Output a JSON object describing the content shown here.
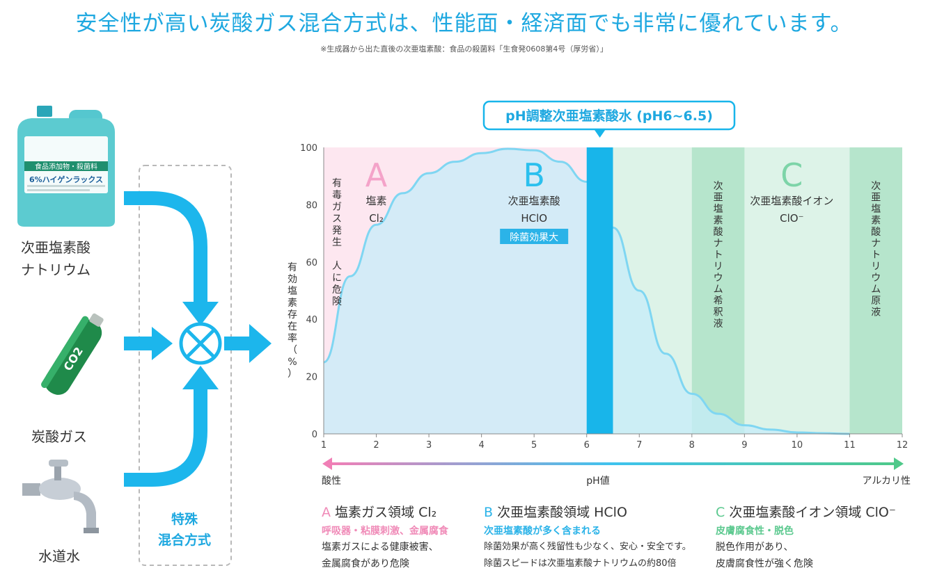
{
  "header": {
    "title": "安全性が高い炭酸ガス混合方式は、性能面・経済面でも非常に優れています。",
    "note": "※生成器から出た直後の次亜塩素酸：食品の殺菌料「生食発0608第4号（厚労省）」"
  },
  "ingredients": [
    {
      "label_line1": "次亜塩素酸",
      "label_line2": "ナトリウム",
      "image": "bleach-bottle"
    },
    {
      "label_line1": "炭酸ガス",
      "label_line2": "",
      "image": "co2-cartridge"
    },
    {
      "label_line1": "水道水",
      "label_line2": "",
      "image": "water-faucet"
    }
  ],
  "bottle_text": {
    "tag": "食品添加物・殺菌料",
    "brand": "6%ハイゲンラックス"
  },
  "cartridge_text": "CO2",
  "method": {
    "line1": "特殊",
    "line2": "混合方式"
  },
  "chart_data": {
    "type": "area",
    "callout": "pH調整次亜塩素酸水 (pH6~6.5)",
    "ylabel": "有効塩素存在率（%）",
    "xlabel": "pH値",
    "xlim": [
      1,
      12
    ],
    "ylim": [
      0,
      100
    ],
    "x_ticks": [
      1,
      2,
      3,
      4,
      5,
      6,
      7,
      8,
      9,
      10,
      11,
      12
    ],
    "y_ticks": [
      0,
      20,
      40,
      60,
      80,
      100
    ],
    "series": [
      {
        "x": [
          1,
          1.5,
          2,
          2.5,
          3,
          3.5,
          4,
          4.5,
          5,
          5.5,
          6,
          6.5,
          7,
          7.5,
          8,
          8.5,
          9,
          9.5,
          10,
          10.5,
          11
        ],
        "values": [
          25,
          55,
          73,
          84,
          91,
          95,
          98,
          99.5,
          99,
          95,
          88,
          72,
          50,
          28,
          14,
          7,
          3,
          1.5,
          0.5,
          0.2,
          0
        ]
      }
    ],
    "highlight_band": {
      "from": 6,
      "to": 6.5
    },
    "regions": [
      {
        "from": 1,
        "to": 6,
        "letter": "A",
        "name": "塩素",
        "formula": "Cl₂",
        "side_text": "有毒ガス発生　人に危険",
        "color": "#f4a3c9"
      },
      {
        "from": 6,
        "to": 12,
        "letter": "B",
        "name": "次亜塩素酸",
        "formula": "HClO",
        "badge": "除菌効果大",
        "color": "#2bc0ee"
      },
      {
        "letter": "C",
        "name": "次亜塩素酸イオン",
        "formula": "ClO⁻",
        "color": "#7dd4a8"
      }
    ],
    "zones": [
      {
        "from": 8,
        "to": 9,
        "text": "次亜塩素酸ナトリウム希釈液"
      },
      {
        "from": 11,
        "to": 12,
        "text": "次亜塩素酸ナトリウム原液"
      }
    ],
    "axis_ends": {
      "left": "酸性",
      "right": "アルカリ性"
    },
    "colors": {
      "line": "#7fd6f2",
      "fill": "#c6ecfa",
      "pink_bg": "#fde7f0",
      "green_bg": "#ddf3e8",
      "green_dark": "#b6e5cc",
      "band": "#18b5ea"
    }
  },
  "legend": [
    {
      "letter": "A",
      "title": "塩素ガス領域 Cl₂",
      "subtitle": "呼吸器・粘膜刺激、金属腐食",
      "desc1": "塩素ガスによる健康被害、",
      "desc2": "金属腐食があり危険",
      "color": "#f08bb8"
    },
    {
      "letter": "B",
      "title": "次亜塩素酸領域 HClO",
      "subtitle": "次亜塩素酸が多く含まれる",
      "desc1": "除菌効果が高く残留性も少なく、安心・安全です。",
      "desc2": "除菌スピードは次亜塩素酸ナトリウムの約80倍",
      "color": "#2bb3e8"
    },
    {
      "letter": "C",
      "title": "次亜塩素酸イオン領域 ClO⁻",
      "subtitle": "皮膚腐食性・脱色",
      "desc1": "脱色作用があり、",
      "desc2": "皮膚腐食性が強く危険",
      "color": "#5cc98f"
    }
  ]
}
